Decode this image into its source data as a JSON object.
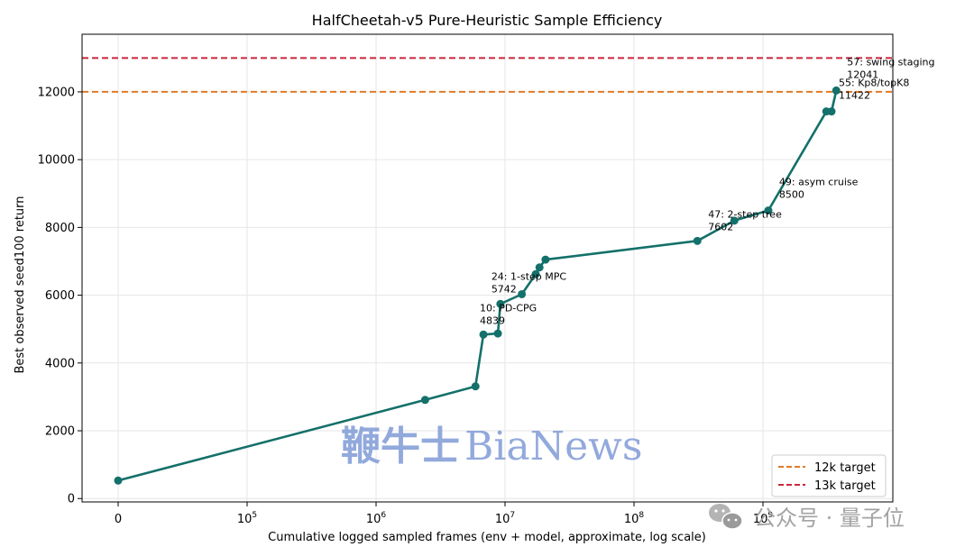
{
  "chart_data": {
    "type": "line",
    "title": "HalfCheetah-v5 Pure-Heuristic Sample Efficiency",
    "xlabel": "Cumulative logged sampled frames (env + model, approximate, log scale)",
    "ylabel": "Best observed seed100 return",
    "x_scale": "symlog",
    "x_ticks": [
      {
        "value": 0,
        "label": "0"
      },
      {
        "value": 100000,
        "base": "10",
        "exp": "5"
      },
      {
        "value": 1000000,
        "base": "10",
        "exp": "6"
      },
      {
        "value": 10000000,
        "base": "10",
        "exp": "7"
      },
      {
        "value": 100000000,
        "base": "10",
        "exp": "8"
      },
      {
        "value": 1000000000,
        "base": "10",
        "exp": "9"
      }
    ],
    "y_ticks": [
      0,
      2000,
      4000,
      6000,
      8000,
      10000,
      12000
    ],
    "ylim": [
      -100,
      13700
    ],
    "grid": true,
    "legend_position": "bottom-right",
    "series": [
      {
        "color": "#14706a",
        "points": [
          {
            "x": 0,
            "y": 530
          },
          {
            "x": 2400000,
            "y": 2910
          },
          {
            "x": 5900000,
            "y": 3310
          },
          {
            "x": 6800000,
            "y": 4839
          },
          {
            "x": 8800000,
            "y": 4870
          },
          {
            "x": 9200000,
            "y": 5742
          },
          {
            "x": 13500000,
            "y": 6030
          },
          {
            "x": 17300000,
            "y": 6620
          },
          {
            "x": 18500000,
            "y": 6820
          },
          {
            "x": 20600000,
            "y": 7050
          },
          {
            "x": 310000000,
            "y": 7602
          },
          {
            "x": 600000000,
            "y": 8200
          },
          {
            "x": 1100000000,
            "y": 8500
          },
          {
            "x": 3100000000,
            "y": 11422
          },
          {
            "x": 3400000000,
            "y": 11422
          },
          {
            "x": 3700000000,
            "y": 12041
          }
        ]
      }
    ],
    "reference_lines": [
      {
        "name": "12k target",
        "y": 12000,
        "color": "#e07b28"
      },
      {
        "name": "13k target",
        "y": 13000,
        "color": "#c8283c"
      }
    ],
    "annotations": [
      {
        "label": "10: PD-CPG",
        "value": "4839",
        "x": 6800000,
        "y": 4839
      },
      {
        "label": "24: 1-step MPC",
        "value": "5742",
        "x": 9200000,
        "y": 5742
      },
      {
        "label": "47: 2-step tree",
        "value": "7602",
        "x": 310000000,
        "y": 7602
      },
      {
        "label": "49: asym cruise",
        "value": "8500",
        "x": 1100000000,
        "y": 8500
      },
      {
        "label": "55: Kp8/topK8",
        "value": "11422",
        "x": 3400000000,
        "y": 11422
      },
      {
        "label": "57: swing staging",
        "value": "12041",
        "x": 3700000000,
        "y": 12041
      }
    ]
  },
  "watermarks": {
    "bianews_cn": "鞭牛士",
    "bianews_en": "BiaNews",
    "wechat": "公众号 · 量子位"
  }
}
